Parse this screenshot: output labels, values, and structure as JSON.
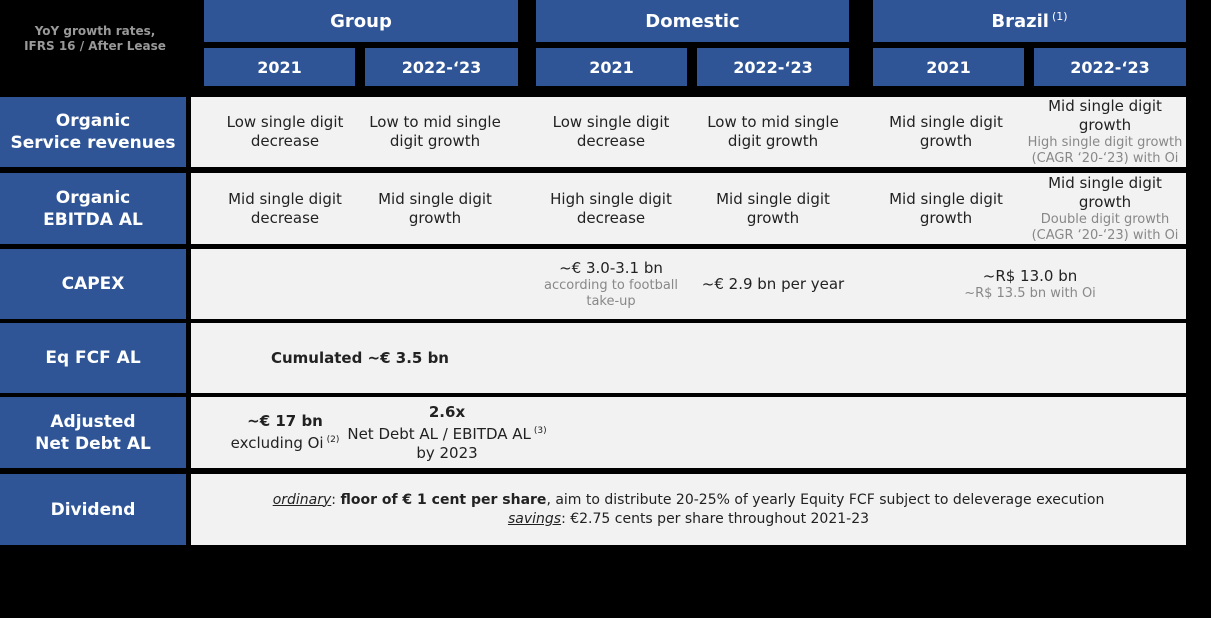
{
  "header": {
    "note": [
      "YoY growth rates,",
      "IFRS 16 / After Lease"
    ],
    "groups": [
      {
        "label": "Group"
      },
      {
        "label": "Domestic"
      },
      {
        "label": "Brazil",
        "sup": "(1)"
      }
    ],
    "periods": [
      "2021",
      "2022-‘23",
      "2021",
      "2022-‘23",
      "2021",
      "2022-‘23"
    ]
  },
  "rows": [
    {
      "label": [
        "Organic",
        "Service revenues"
      ],
      "cells": [
        {
          "lines": [
            "Low single digit",
            "decrease"
          ]
        },
        {
          "lines": [
            "Low to mid single",
            "digit growth"
          ]
        },
        {
          "lines": [
            "Low single digit",
            "decrease"
          ]
        },
        {
          "lines": [
            "Low to mid single",
            "digit growth"
          ]
        },
        {
          "lines": [
            "Mid single digit",
            "growth"
          ]
        },
        {
          "lines": [
            "Mid single digit growth"
          ],
          "notes": [
            "High single digit growth",
            "(CAGR ‘20-‘23) with Oi"
          ]
        }
      ]
    },
    {
      "label": [
        "Organic",
        "EBITDA AL"
      ],
      "cells": [
        {
          "lines": [
            "Mid single digit",
            "decrease"
          ]
        },
        {
          "lines": [
            "Mid single digit",
            "growth"
          ]
        },
        {
          "lines": [
            "High single digit",
            "decrease"
          ]
        },
        {
          "lines": [
            "Mid single digit",
            "growth"
          ]
        },
        {
          "lines": [
            "Mid single digit",
            "growth"
          ]
        },
        {
          "lines": [
            "Mid single digit growth"
          ],
          "notes": [
            "Double digit growth",
            "(CAGR ‘20-‘23) with Oi"
          ]
        }
      ]
    },
    {
      "label": [
        "CAPEX"
      ],
      "cells": [
        {
          "lines": [
            "~€ 3.0-3.1 bn"
          ],
          "notes": [
            "according to football",
            "take-up"
          ]
        },
        {
          "lines": [
            "~€ 2.9 bn per year"
          ]
        },
        {
          "lines": [
            "~R$ 13.0 bn"
          ],
          "notes": [
            "~R$ 13.5 bn with Oi"
          ]
        }
      ]
    },
    {
      "label": [
        "Eq FCF AL"
      ],
      "cells": [
        {
          "lines": [
            "Cumulated ~€ 3.5 bn"
          ]
        }
      ]
    },
    {
      "label": [
        "Adjusted",
        "Net Debt AL"
      ],
      "cells": [
        {
          "lines": [
            "~€ 17 bn",
            "excluding Oi"
          ],
          "sup": "(2)"
        },
        {
          "lines": [
            "2.6x",
            "Net Debt AL / EBITDA AL",
            "by 2023"
          ],
          "sup": "(3)"
        }
      ]
    },
    {
      "label": [
        "Dividend"
      ],
      "lines": [
        [
          "ordinary",
          ": ",
          "floor of € 1 cent per share",
          ", aim to distribute 20-25% of yearly Equity FCF subject to deleverage execution"
        ],
        [
          "savings",
          ": €2.75 cents per share throughout 2021-23"
        ]
      ]
    }
  ]
}
